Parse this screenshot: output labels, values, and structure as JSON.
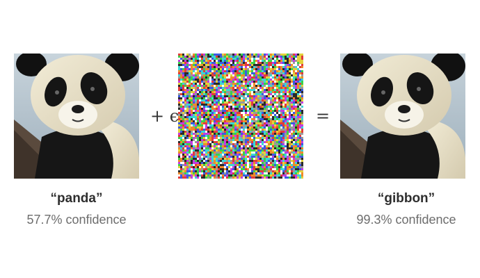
{
  "figure": {
    "operators": {
      "plus": "+ ϵ",
      "equals": "="
    },
    "left": {
      "label": "“panda”",
      "confidence": "57.7% confidence"
    },
    "right": {
      "label": "“gibbon”",
      "confidence": "99.3% confidence"
    }
  },
  "icons": {
    "left_image": "panda-photo",
    "noise_image": "adversarial-noise",
    "right_image": "panda-photo-perturbed"
  }
}
